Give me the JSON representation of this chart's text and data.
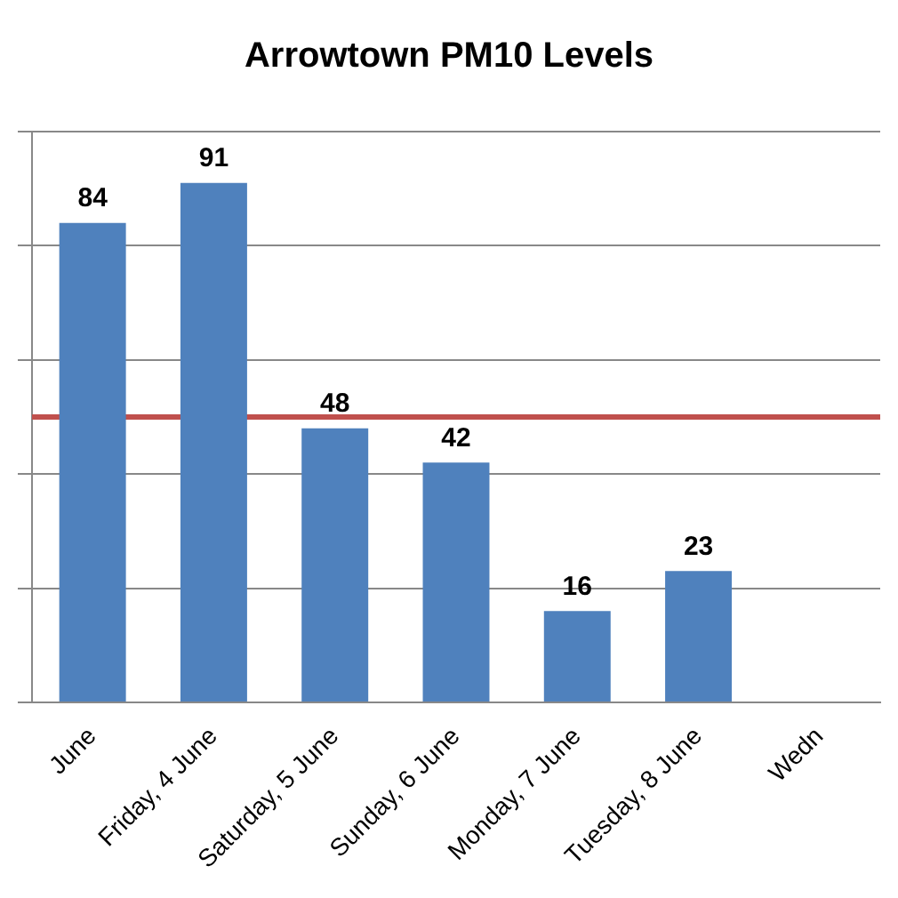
{
  "chart_data": {
    "type": "bar",
    "title": "Arrowtown PM10 Levels",
    "categories": [
      "June",
      "Friday, 4 June",
      "Saturday, 5 June",
      "Sunday, 6 June",
      "Monday, 7 June",
      "Tuesday, 8 June",
      "Wedn"
    ],
    "values": [
      84,
      91,
      48,
      42,
      16,
      23,
      null
    ],
    "color": "#4f81bd",
    "ylim": [
      0,
      100
    ],
    "yticks": [
      {
        "value": 0,
        "label": null
      },
      {
        "value": 20,
        "label": null
      },
      {
        "value": 40,
        "label": null
      },
      {
        "value": 60,
        "label": null
      },
      {
        "value": 80,
        "label": null
      },
      {
        "value": 100,
        "label": null
      }
    ],
    "grid": "y",
    "tick_labels": "x",
    "data_labels": true,
    "legend": false,
    "ref_lines": [
      {
        "axis": "y",
        "value": 50,
        "color": "#c0504d"
      }
    ]
  }
}
